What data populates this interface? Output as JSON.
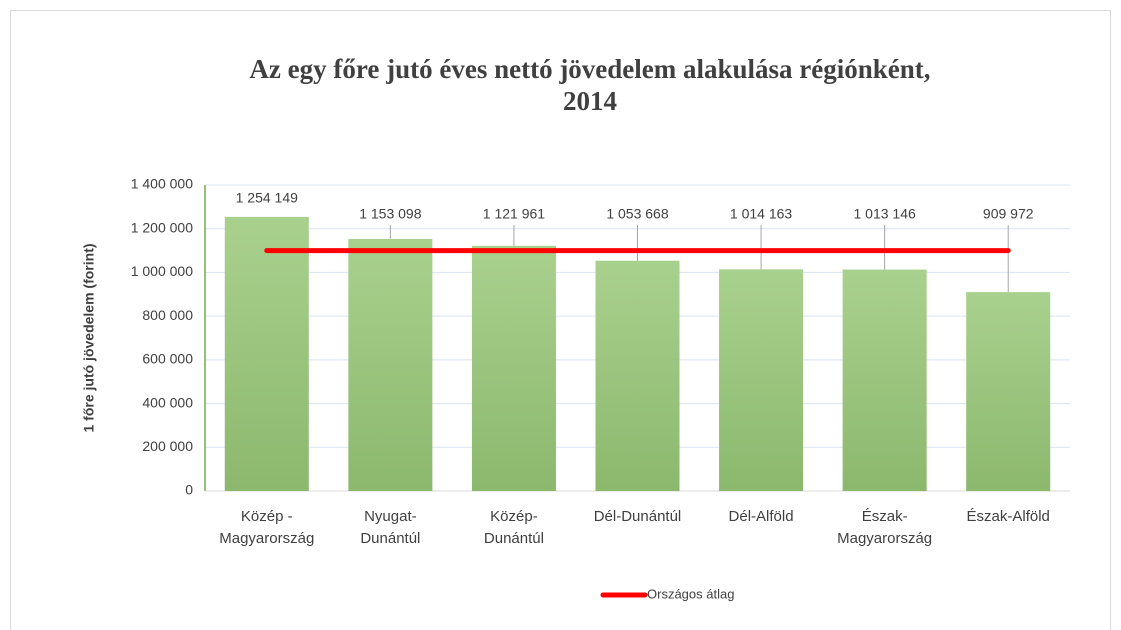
{
  "chart_data": {
    "type": "bar",
    "title": [
      "Az egy főre jutó éves nettó jövedelem alakulása  régiónként,",
      "2014"
    ],
    "ylabel": "1 főre jutó jövedelem (forint)",
    "categories": [
      "Közép -\nMagyarország",
      "Nyugat-\nDunántúl",
      "Közép-\nDunántúl",
      "Dél-Dunántúl",
      "Dél-Alföld",
      "Észak-\nMagyarország",
      "Észak-Alföld"
    ],
    "values": [
      1254149,
      1153098,
      1121961,
      1053668,
      1014163,
      1013146,
      909972
    ],
    "value_labels": [
      "1 254 149",
      "1 153 098",
      "1 121 961",
      "1 053 668",
      "1 014 163",
      "1 013 146",
      "909 972"
    ],
    "color": "#9dc57f",
    "series": [
      {
        "name": "Országos átlag",
        "color": "#ff0000",
        "type": "line",
        "values": [
          1100000,
          1100000,
          1100000,
          1100000,
          1100000,
          1100000,
          1100000
        ]
      }
    ],
    "ylim": [
      0,
      1400000
    ],
    "yticks": [
      0,
      {
        "value": 200000,
        "label": "200 000"
      },
      {
        "value": 400000,
        "label": "400 000"
      },
      {
        "value": 600000,
        "label": "600 000"
      },
      {
        "value": 800000,
        "label": "800 000"
      },
      {
        "value": 1000000,
        "label": "1 000 000"
      },
      {
        "value": 1200000,
        "label": "1 200 000"
      },
      {
        "value": 1400000,
        "label": "1 400 000"
      }
    ],
    "grid": true,
    "legend": "bottom"
  }
}
